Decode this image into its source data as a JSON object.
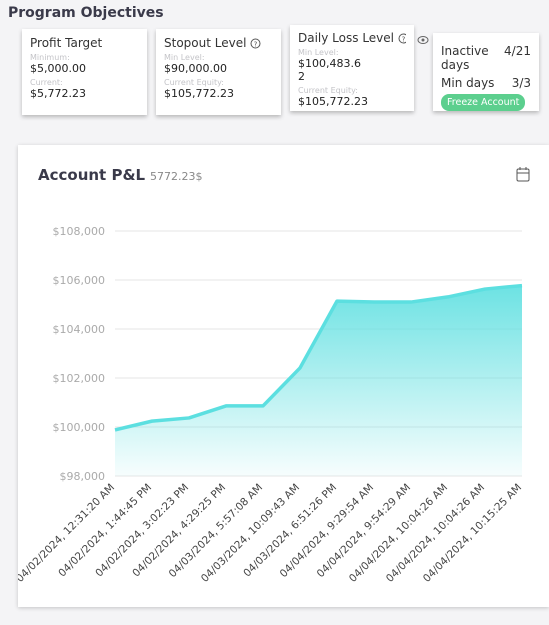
{
  "header": {
    "title": "Program Objectives"
  },
  "cards": [
    {
      "title": "Profit Target",
      "rows": [
        {
          "label": "Minimum:",
          "value": "$5,000.00"
        },
        {
          "label": "Current:",
          "value": "$5,772.23"
        }
      ]
    },
    {
      "title": "Stopout Level",
      "rows": [
        {
          "label": "Min Level:",
          "value": "$90,000.00"
        },
        {
          "label": "Current Equity:",
          "value": "$105,772.23"
        }
      ]
    },
    {
      "title": "Daily Loss Level",
      "rows": [
        {
          "label": "Min Level:",
          "value": "$100,483.62"
        },
        {
          "label": "Current Equity:",
          "value": "$105,772.23"
        }
      ]
    }
  ],
  "status": {
    "rows": [
      {
        "label": "Inactive days",
        "value": "4/21"
      },
      {
        "label": "Min days",
        "value": "3/3"
      }
    ],
    "button": "Freeze Account"
  },
  "chart_data": {
    "type": "area",
    "title": "Account P&L",
    "subtitle": "5772.23$",
    "categories": [
      "04/02/2024, 12:31:20 AM",
      "04/02/2024, 1:44:45 PM",
      "04/02/2024, 3:02:23 PM",
      "04/02/2024, 4:29:25 PM",
      "04/03/2024, 5:57:08 AM",
      "04/03/2024, 10:09:43 AM",
      "04/03/2024, 6:51:26 PM",
      "04/04/2024, 9:29:54 AM",
      "04/04/2024, 9:54:29 AM",
      "04/04/2024, 10:04:26 AM",
      "04/04/2024, 10:04:26 AM",
      "04/04/2024, 10:15:25 AM"
    ],
    "values": [
      99880,
      100240,
      100370,
      100860,
      100860,
      102410,
      105140,
      105100,
      105100,
      105310,
      105630,
      105772.23
    ],
    "color": "#5cdfe0",
    "ylim": [
      98000,
      108000
    ],
    "yticks": [
      {
        "value": 98000,
        "label": "$98,000"
      },
      {
        "value": 100000,
        "label": "$100,000"
      },
      {
        "value": 102000,
        "label": "$102,000"
      },
      {
        "value": 104000,
        "label": "$104,000"
      },
      {
        "value": 106000,
        "label": "$106,000"
      },
      {
        "value": 108000,
        "label": "$108,000"
      }
    ],
    "grid": true
  }
}
